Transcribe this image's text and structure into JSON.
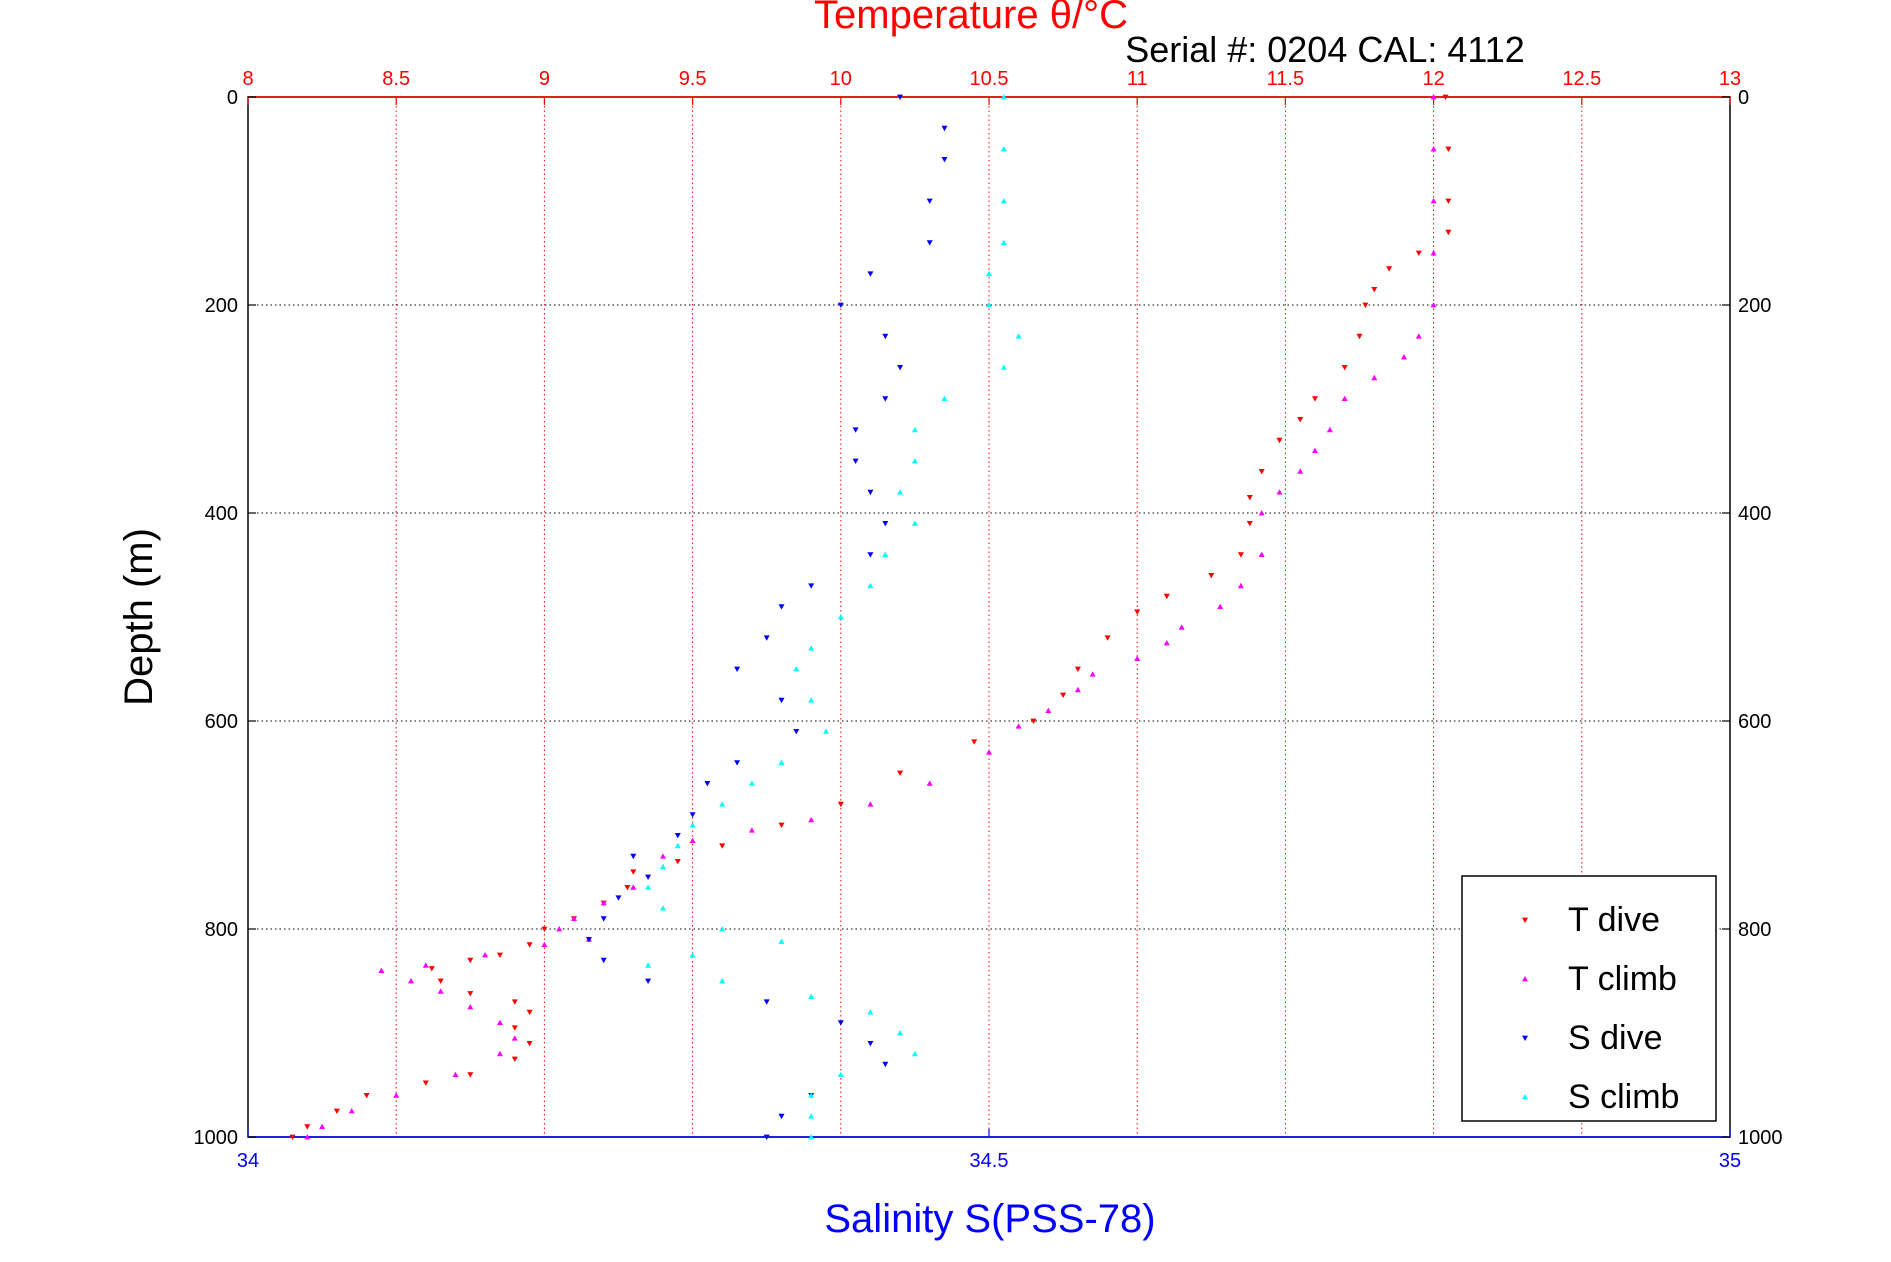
{
  "chart_data": {
    "type": "scatter",
    "title": "Temperature θ/°C",
    "subtitle": "Serial #: 0204  CAL: 4112",
    "ylabel": "Depth (m)",
    "xlabel_top": "Temperature θ/°C",
    "xlabel_bottom": "Salinity S(PSS-78)",
    "y_reversed": true,
    "ylim": [
      0,
      1000
    ],
    "yticks": [
      "0",
      "200",
      "400",
      "600",
      "800",
      "1000"
    ],
    "x_top_lim": [
      8,
      13
    ],
    "x_top_ticks": [
      "8",
      "8.5",
      "9",
      "9.5",
      "10",
      "10.5",
      "11",
      "11.5",
      "12",
      "12.5",
      "13"
    ],
    "x_bottom_lim": [
      34,
      35
    ],
    "x_bottom_ticks": [
      "34",
      "34.5",
      "35"
    ],
    "grid": true,
    "legend_position": "bottom-right",
    "colors": {
      "top_axis": "#ff0000",
      "bottom_axis": "#0000ff",
      "t_dive": "#ff0000",
      "t_climb": "#ff00ff",
      "s_dive": "#0000ff",
      "s_climb": "#00ffff",
      "grid_top": "#ff0000",
      "grid_y": "#000000"
    },
    "series": [
      {
        "name": "T dive",
        "axis": "top",
        "marker": "triangle-down",
        "points": [
          [
            12.04,
            0
          ],
          [
            12.05,
            50
          ],
          [
            12.05,
            100
          ],
          [
            12.05,
            130
          ],
          [
            11.95,
            150
          ],
          [
            11.85,
            165
          ],
          [
            11.8,
            185
          ],
          [
            11.77,
            200
          ],
          [
            11.75,
            230
          ],
          [
            11.7,
            260
          ],
          [
            11.6,
            290
          ],
          [
            11.55,
            310
          ],
          [
            11.48,
            330
          ],
          [
            11.42,
            360
          ],
          [
            11.38,
            385
          ],
          [
            11.38,
            410
          ],
          [
            11.35,
            440
          ],
          [
            11.25,
            460
          ],
          [
            11.1,
            480
          ],
          [
            11.0,
            495
          ],
          [
            10.9,
            520
          ],
          [
            10.8,
            550
          ],
          [
            10.75,
            575
          ],
          [
            10.65,
            600
          ],
          [
            10.45,
            620
          ],
          [
            10.2,
            650
          ],
          [
            10.0,
            680
          ],
          [
            9.8,
            700
          ],
          [
            9.6,
            720
          ],
          [
            9.45,
            735
          ],
          [
            9.3,
            745
          ],
          [
            9.28,
            760
          ],
          [
            9.2,
            775
          ],
          [
            9.1,
            790
          ],
          [
            9.0,
            800
          ],
          [
            8.95,
            815
          ],
          [
            8.85,
            825
          ],
          [
            8.75,
            830
          ],
          [
            8.62,
            838
          ],
          [
            8.65,
            850
          ],
          [
            8.75,
            862
          ],
          [
            8.9,
            870
          ],
          [
            8.95,
            880
          ],
          [
            8.9,
            895
          ],
          [
            8.95,
            910
          ],
          [
            8.9,
            925
          ],
          [
            8.75,
            940
          ],
          [
            8.6,
            948
          ],
          [
            8.4,
            960
          ],
          [
            8.3,
            975
          ],
          [
            8.2,
            990
          ],
          [
            8.15,
            1000
          ]
        ]
      },
      {
        "name": "T climb",
        "axis": "top",
        "marker": "triangle-up",
        "points": [
          [
            12.0,
            0
          ],
          [
            12.0,
            50
          ],
          [
            12.0,
            100
          ],
          [
            12.0,
            150
          ],
          [
            12.0,
            200
          ],
          [
            11.95,
            230
          ],
          [
            11.9,
            250
          ],
          [
            11.8,
            270
          ],
          [
            11.7,
            290
          ],
          [
            11.65,
            320
          ],
          [
            11.6,
            340
          ],
          [
            11.55,
            360
          ],
          [
            11.48,
            380
          ],
          [
            11.42,
            400
          ],
          [
            11.42,
            440
          ],
          [
            11.35,
            470
          ],
          [
            11.28,
            490
          ],
          [
            11.15,
            510
          ],
          [
            11.1,
            525
          ],
          [
            11.0,
            540
          ],
          [
            10.85,
            555
          ],
          [
            10.8,
            570
          ],
          [
            10.7,
            590
          ],
          [
            10.6,
            605
          ],
          [
            10.5,
            630
          ],
          [
            10.3,
            660
          ],
          [
            10.1,
            680
          ],
          [
            9.9,
            695
          ],
          [
            9.7,
            705
          ],
          [
            9.5,
            715
          ],
          [
            9.4,
            730
          ],
          [
            9.3,
            760
          ],
          [
            9.2,
            775
          ],
          [
            9.1,
            790
          ],
          [
            9.05,
            800
          ],
          [
            9.15,
            810
          ],
          [
            9.0,
            815
          ],
          [
            8.8,
            825
          ],
          [
            8.6,
            835
          ],
          [
            8.45,
            840
          ],
          [
            8.55,
            850
          ],
          [
            8.65,
            860
          ],
          [
            8.75,
            875
          ],
          [
            8.85,
            890
          ],
          [
            8.9,
            905
          ],
          [
            8.85,
            920
          ],
          [
            8.7,
            940
          ],
          [
            8.5,
            960
          ],
          [
            8.35,
            975
          ],
          [
            8.25,
            990
          ],
          [
            8.2,
            1000
          ]
        ]
      },
      {
        "name": "S dive",
        "axis": "bottom",
        "marker": "triangle-down",
        "points": [
          [
            34.44,
            0
          ],
          [
            34.47,
            30
          ],
          [
            34.47,
            60
          ],
          [
            34.46,
            100
          ],
          [
            34.46,
            140
          ],
          [
            34.42,
            170
          ],
          [
            34.4,
            200
          ],
          [
            34.43,
            230
          ],
          [
            34.44,
            260
          ],
          [
            34.43,
            290
          ],
          [
            34.41,
            320
          ],
          [
            34.41,
            350
          ],
          [
            34.42,
            380
          ],
          [
            34.43,
            410
          ],
          [
            34.42,
            440
          ],
          [
            34.38,
            470
          ],
          [
            34.36,
            490
          ],
          [
            34.35,
            520
          ],
          [
            34.33,
            550
          ],
          [
            34.36,
            580
          ],
          [
            34.37,
            610
          ],
          [
            34.33,
            640
          ],
          [
            34.31,
            660
          ],
          [
            34.3,
            690
          ],
          [
            34.29,
            710
          ],
          [
            34.26,
            730
          ],
          [
            34.27,
            750
          ],
          [
            34.25,
            770
          ],
          [
            34.24,
            790
          ],
          [
            34.23,
            810
          ],
          [
            34.24,
            830
          ],
          [
            34.27,
            850
          ],
          [
            34.35,
            870
          ],
          [
            34.4,
            890
          ],
          [
            34.42,
            910
          ],
          [
            34.43,
            930
          ],
          [
            34.38,
            960
          ],
          [
            34.36,
            980
          ],
          [
            34.35,
            1000
          ]
        ]
      },
      {
        "name": "S climb",
        "axis": "bottom",
        "marker": "triangle-up",
        "points": [
          [
            34.51,
            0
          ],
          [
            34.51,
            50
          ],
          [
            34.51,
            100
          ],
          [
            34.51,
            140
          ],
          [
            34.5,
            170
          ],
          [
            34.5,
            200
          ],
          [
            34.52,
            230
          ],
          [
            34.51,
            260
          ],
          [
            34.47,
            290
          ],
          [
            34.45,
            320
          ],
          [
            34.45,
            350
          ],
          [
            34.44,
            380
          ],
          [
            34.45,
            410
          ],
          [
            34.43,
            440
          ],
          [
            34.42,
            470
          ],
          [
            34.4,
            500
          ],
          [
            34.38,
            530
          ],
          [
            34.37,
            550
          ],
          [
            34.38,
            580
          ],
          [
            34.39,
            610
          ],
          [
            34.36,
            640
          ],
          [
            34.34,
            660
          ],
          [
            34.32,
            680
          ],
          [
            34.3,
            700
          ],
          [
            34.29,
            720
          ],
          [
            34.28,
            740
          ],
          [
            34.27,
            760
          ],
          [
            34.28,
            780
          ],
          [
            34.32,
            800
          ],
          [
            34.36,
            812
          ],
          [
            34.3,
            825
          ],
          [
            34.27,
            835
          ],
          [
            34.32,
            850
          ],
          [
            34.38,
            865
          ],
          [
            34.42,
            880
          ],
          [
            34.44,
            900
          ],
          [
            34.45,
            920
          ],
          [
            34.4,
            940
          ],
          [
            34.38,
            960
          ],
          [
            34.38,
            980
          ],
          [
            34.38,
            1000
          ]
        ]
      }
    ]
  }
}
